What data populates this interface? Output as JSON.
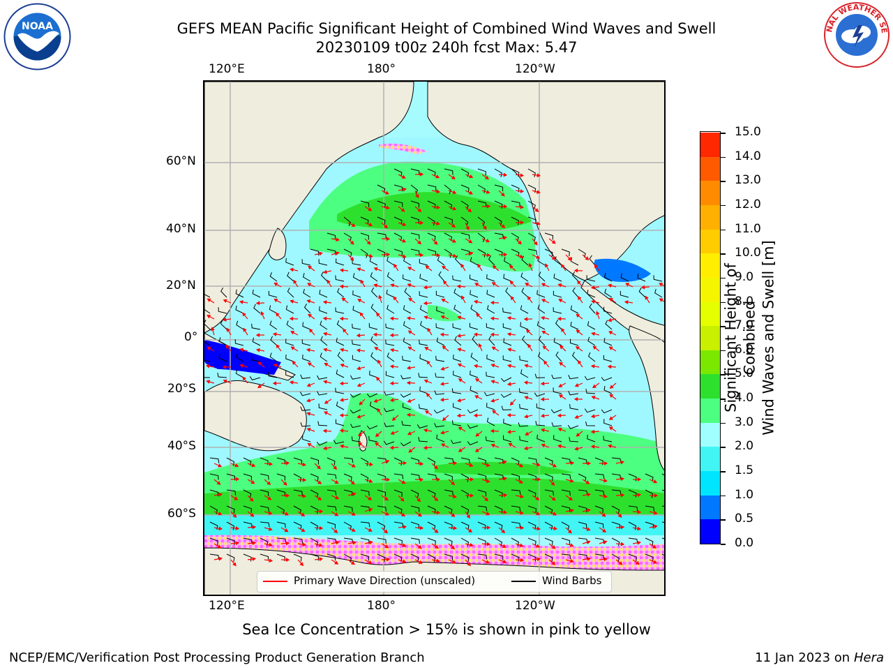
{
  "title": {
    "line1": "GEFS MEAN Pacific Significant Height of Combined Wind Waves and Swell",
    "line2": "20230109 t00z 240h fcst   Max: 5.47"
  },
  "axes": {
    "top_lon_labels": [
      "120°E",
      "180°",
      "120°W"
    ],
    "bottom_lon_labels": [
      "120°E",
      "180°",
      "120°W"
    ],
    "lat_labels": [
      "60°N",
      "40°N",
      "20°N",
      "0°",
      "20°S",
      "40°S",
      "60°S"
    ]
  },
  "colorbar": {
    "label_line1": "Significant Height of Combined",
    "label_line2": "Wind Waves and Swell [m]",
    "ticks": [
      "15.0",
      "14.0",
      "13.0",
      "12.0",
      "11.0",
      "10.0",
      "9.0",
      "8.0",
      "7.0",
      "6.0",
      "5.0",
      "4.0",
      "3.0",
      "2.0",
      "1.5",
      "1.0",
      "0.5",
      "0.0"
    ],
    "colors_bottom_to_top": [
      "#0000ff",
      "#0078ff",
      "#00e5ff",
      "#42f5f5",
      "#a0ffff",
      "#4dff80",
      "#2ee02e",
      "#7be800",
      "#c8f000",
      "#e6ff00",
      "#f5f500",
      "#ffee00",
      "#ffcc00",
      "#ffb000",
      "#ff8c00",
      "#ff5a00",
      "#ff2800"
    ]
  },
  "legend": {
    "wave_label": "Primary Wave Direction (unscaled)",
    "barb_label": "Wind Barbs",
    "wave_color": "#ff0000",
    "barb_color": "#000000"
  },
  "note": "Sea Ice Concentration > 15% is shown in pink to yellow",
  "footer": {
    "left": "NCEP/EMC/Verification Post Processing Product Generation Branch",
    "right_date": "11 Jan 2023 on ",
    "right_host": "Hera"
  },
  "logos": {
    "noaa_text": "NOAA",
    "nws_text": "NATIONAL WEATHER SERVICE"
  }
}
